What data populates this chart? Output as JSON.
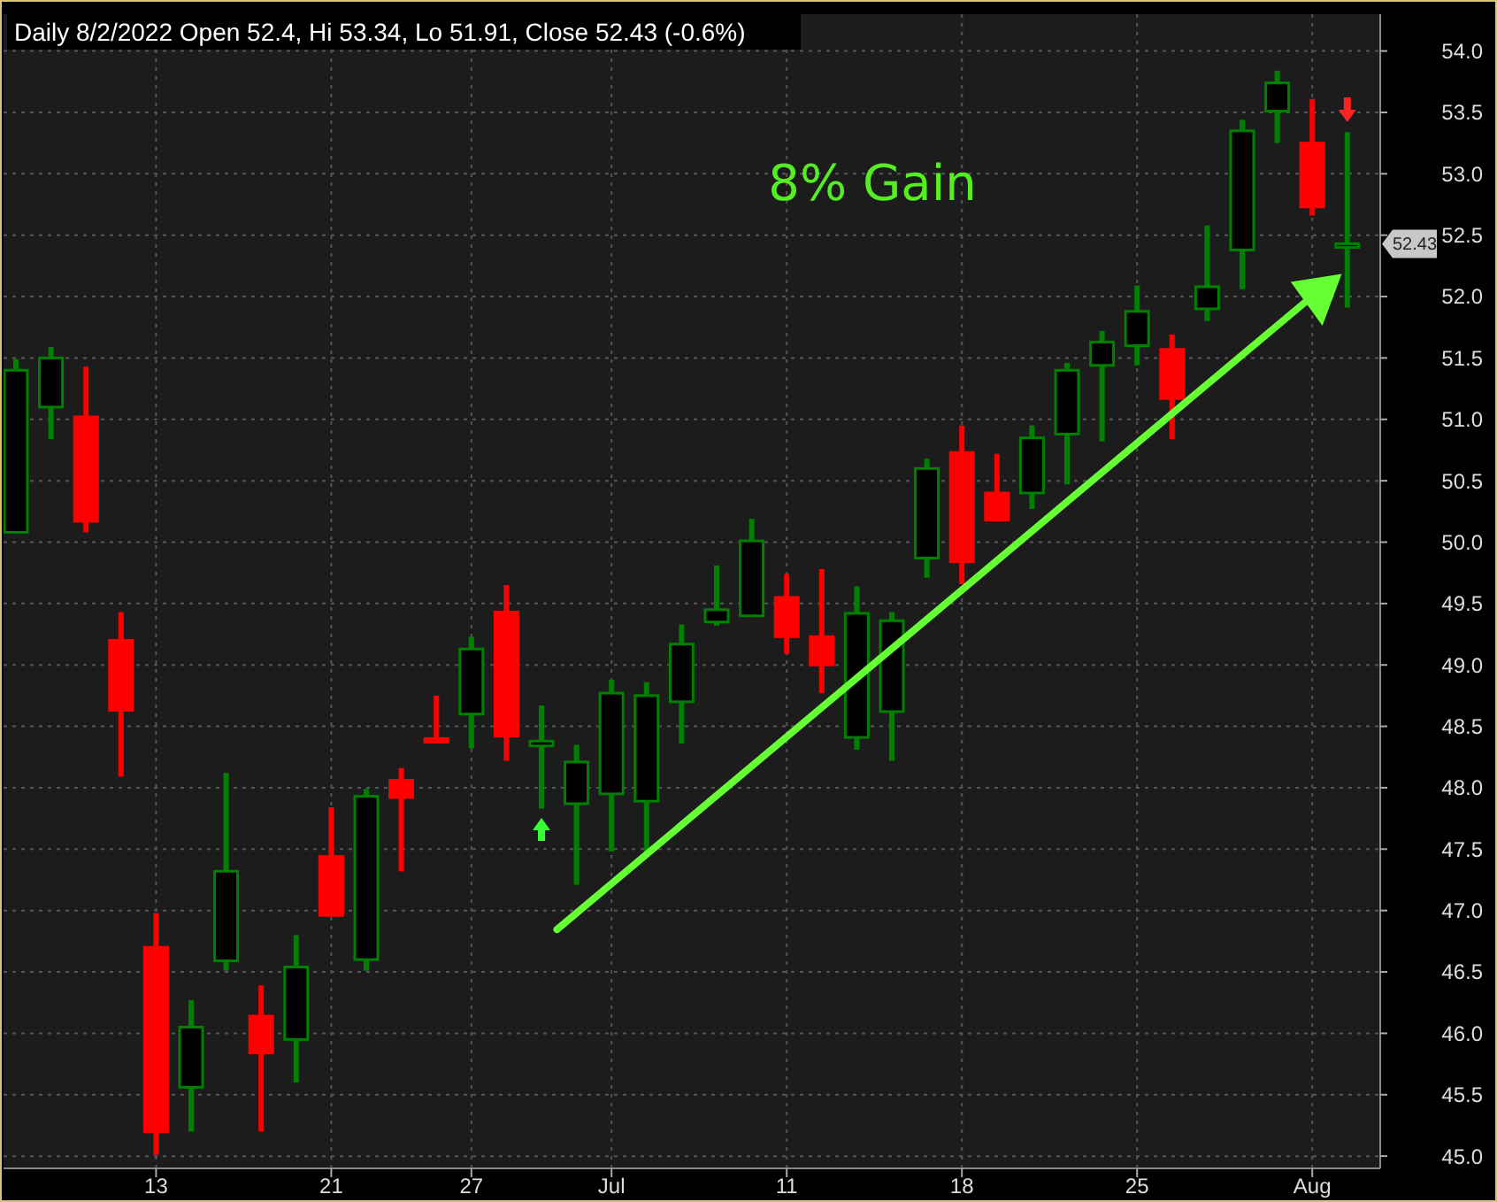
{
  "chart_data": {
    "type": "candlestick",
    "title": "Daily 8/2/2022 Open 52.4, Hi 53.34, Lo 51.91, Close 52.43 (-0.6%)",
    "categories": [
      null,
      null,
      null,
      null,
      "13",
      null,
      null,
      null,
      null,
      "21",
      null,
      null,
      null,
      "27",
      null,
      null,
      null,
      "Jul",
      null,
      null,
      null,
      null,
      "11",
      null,
      null,
      null,
      null,
      "18",
      null,
      null,
      null,
      null,
      "25",
      null,
      null,
      null,
      null,
      "Aug",
      null
    ],
    "ohlc": [
      [
        50.08,
        51.49,
        50.07,
        51.4
      ],
      [
        51.1,
        51.59,
        50.84,
        51.5
      ],
      [
        51.02,
        51.43,
        50.08,
        50.17
      ],
      [
        49.2,
        49.43,
        48.09,
        48.63
      ],
      [
        46.7,
        46.98,
        45.01,
        45.2
      ],
      [
        45.56,
        46.27,
        45.2,
        46.05
      ],
      [
        46.59,
        48.12,
        46.51,
        47.32
      ],
      [
        46.14,
        46.39,
        45.2,
        45.84
      ],
      [
        45.95,
        46.8,
        45.6,
        46.54
      ],
      [
        47.44,
        47.84,
        46.96,
        46.96
      ],
      [
        46.6,
        47.99,
        46.51,
        47.93
      ],
      [
        48.06,
        48.16,
        47.32,
        47.92
      ],
      [
        48.4,
        48.75,
        48.38,
        48.38
      ],
      [
        48.6,
        49.23,
        48.32,
        49.13
      ],
      [
        49.43,
        49.65,
        48.22,
        48.42
      ],
      [
        48.34,
        48.67,
        47.83,
        48.38
      ],
      [
        47.87,
        48.35,
        47.21,
        48.21
      ],
      [
        47.95,
        48.88,
        47.48,
        48.77
      ],
      [
        47.89,
        48.86,
        47.44,
        48.75
      ],
      [
        48.7,
        49.33,
        48.36,
        49.17
      ],
      [
        49.35,
        49.81,
        49.32,
        49.45
      ],
      [
        49.4,
        50.19,
        49.39,
        50.01
      ],
      [
        49.55,
        49.74,
        49.09,
        49.23
      ],
      [
        49.23,
        49.78,
        48.77,
        49.0
      ],
      [
        48.41,
        49.64,
        48.31,
        49.42
      ],
      [
        48.62,
        49.43,
        48.22,
        49.36
      ],
      [
        49.87,
        50.68,
        49.71,
        50.6
      ],
      [
        50.73,
        50.95,
        49.66,
        49.84
      ],
      [
        50.4,
        50.72,
        50.18,
        50.18
      ],
      [
        50.4,
        50.95,
        50.27,
        50.85
      ],
      [
        50.88,
        51.46,
        50.47,
        51.4
      ],
      [
        51.44,
        51.72,
        50.82,
        51.63
      ],
      [
        51.6,
        52.09,
        51.44,
        51.88
      ],
      [
        51.57,
        51.69,
        50.84,
        51.17
      ],
      [
        51.9,
        52.58,
        51.8,
        52.08
      ],
      [
        52.38,
        53.44,
        52.06,
        53.35
      ],
      [
        53.51,
        53.84,
        53.25,
        53.74
      ],
      [
        53.25,
        53.61,
        52.66,
        52.73
      ],
      [
        52.4,
        53.34,
        51.91,
        52.43
      ]
    ],
    "colors": [
      "#008000",
      "#008000",
      "#ff0000",
      "#ff0000",
      "#ff0000",
      "#008000",
      "#008000",
      "#ff0000",
      "#008000",
      "#ff0000",
      "#008000",
      "#ff0000",
      "#ff0000",
      "#008000",
      "#ff0000",
      "#008000",
      "#008000",
      "#008000",
      "#008000",
      "#008000",
      "#008000",
      "#008000",
      "#ff0000",
      "#ff0000",
      "#008000",
      "#008000",
      "#008000",
      "#ff0000",
      "#ff0000",
      "#008000",
      "#008000",
      "#008000",
      "#008000",
      "#ff0000",
      "#008000",
      "#008000",
      "#008000",
      "#ff0000",
      "#008000"
    ],
    "ylim": [
      44.9,
      54.3
    ],
    "yticks": [
      {
        "value": 45,
        "label": "45.0"
      },
      {
        "value": 45.5,
        "label": "45.5"
      },
      {
        "value": 46,
        "label": "46.0"
      },
      {
        "value": 46.5,
        "label": "46.5"
      },
      {
        "value": 47,
        "label": "47.0"
      },
      {
        "value": 47.5,
        "label": "47.5"
      },
      {
        "value": 48,
        "label": "48.0"
      },
      {
        "value": 48.5,
        "label": "48.5"
      },
      {
        "value": 49,
        "label": "49.0"
      },
      {
        "value": 49.5,
        "label": "49.5"
      },
      {
        "value": 50,
        "label": "50.0"
      },
      {
        "value": 50.5,
        "label": "50.5"
      },
      {
        "value": 51,
        "label": "51.0"
      },
      {
        "value": 51.5,
        "label": "51.5"
      },
      {
        "value": 52,
        "label": "52.0"
      },
      {
        "value": 52.5,
        "label": "52.5"
      },
      {
        "value": 53,
        "label": "53.0"
      },
      {
        "value": 53.5,
        "label": "53.5"
      },
      {
        "value": 54,
        "label": "54.0"
      }
    ],
    "grid": true,
    "annotations": [
      "8% Gain",
      "52.43"
    ]
  }
}
